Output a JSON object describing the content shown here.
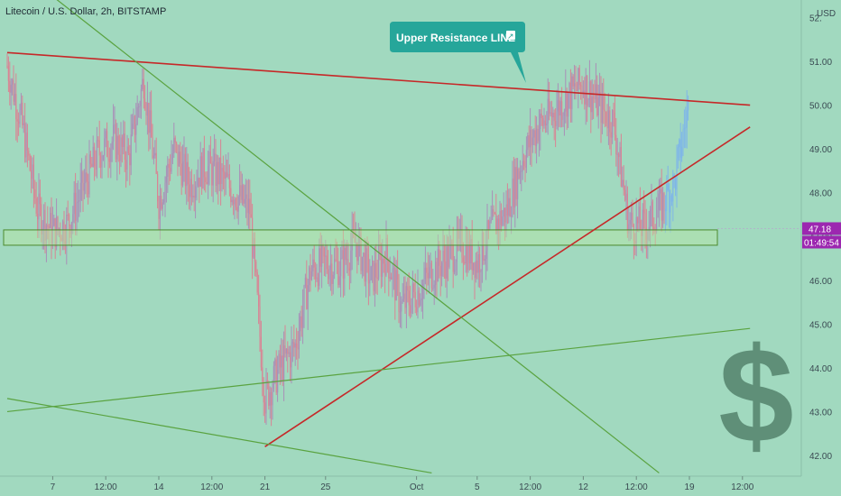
{
  "header": {
    "symbol_title": "Litecoin / U.S. Dollar, 2h, BITSTAMP",
    "currency": "USD"
  },
  "annotation": {
    "callout_text": "Upper Resistance LINE",
    "callout_glyph": "↗",
    "dollar_glyph": "$"
  },
  "price_tag": {
    "value": "47.18",
    "color": "#9c27b0"
  },
  "time_tag": {
    "value": "01:49:54",
    "color": "#9c27b0"
  },
  "colors": {
    "background": "#a1d9bf",
    "red_line": "#c62828",
    "green_line": "#5aa340",
    "candle_up": "#7fb6e8",
    "candle_down": "#d98494",
    "callout": "#26a69a",
    "zone_fill": "#b9e6a5",
    "dollar": "#5f8f78"
  },
  "chart_data": {
    "type": "candlestick",
    "title": "Litecoin / U.S. Dollar, 2h, BITSTAMP",
    "ylabel": "USD",
    "ylim": [
      41.6,
      52.5
    ],
    "y_ticks": [
      "52.",
      "51.00",
      "50.00",
      "49.00",
      "48.00",
      "47.00",
      "46.00",
      "45.00",
      "44.00",
      "43.00",
      "42.00"
    ],
    "x_ticks": [
      "7",
      "12:00",
      "14",
      "12:00",
      "21",
      "25",
      "Oct",
      "5",
      "12:00",
      "12",
      "12:00",
      "19",
      "12:00"
    ],
    "price_path": [
      {
        "t": "Sep 4",
        "price": 50.9
      },
      {
        "t": "Sep 5",
        "price": 49.5
      },
      {
        "t": "Sep 6",
        "price": 47.6
      },
      {
        "t": "Sep 7",
        "price": 47.1
      },
      {
        "t": "Sep 8",
        "price": 47.3
      },
      {
        "t": "Sep 9",
        "price": 48.1
      },
      {
        "t": "Sep 10",
        "price": 48.9
      },
      {
        "t": "Sep 11",
        "price": 49.2
      },
      {
        "t": "Sep 12",
        "price": 48.8
      },
      {
        "t": "Sep 13",
        "price": 50.6
      },
      {
        "t": "Sep 14",
        "price": 47.8
      },
      {
        "t": "Sep 15",
        "price": 49.0
      },
      {
        "t": "Sep 16",
        "price": 48.2
      },
      {
        "t": "Sep 17",
        "price": 48.6
      },
      {
        "t": "Sep 18",
        "price": 48.4
      },
      {
        "t": "Sep 19",
        "price": 48.0
      },
      {
        "t": "Sep 20",
        "price": 47.6
      },
      {
        "t": "Sep 21",
        "price": 43.3
      },
      {
        "t": "Sep 22",
        "price": 44.0
      },
      {
        "t": "Sep 23",
        "price": 44.5
      },
      {
        "t": "Sep 24",
        "price": 46.2
      },
      {
        "t": "Sep 25",
        "price": 46.4
      },
      {
        "t": "Sep 26",
        "price": 46.3
      },
      {
        "t": "Sep 27",
        "price": 46.9
      },
      {
        "t": "Sep 28",
        "price": 46.0
      },
      {
        "t": "Sep 29",
        "price": 46.6
      },
      {
        "t": "Sep 30",
        "price": 45.4
      },
      {
        "t": "Oct 1",
        "price": 45.7
      },
      {
        "t": "Oct 2",
        "price": 46.2
      },
      {
        "t": "Oct 3",
        "price": 46.5
      },
      {
        "t": "Oct 4",
        "price": 46.8
      },
      {
        "t": "Oct 5",
        "price": 46.4
      },
      {
        "t": "Oct 6",
        "price": 47.2
      },
      {
        "t": "Oct 7",
        "price": 47.6
      },
      {
        "t": "Oct 8",
        "price": 48.8
      },
      {
        "t": "Oct 9",
        "price": 49.5
      },
      {
        "t": "Oct 10",
        "price": 49.8
      },
      {
        "t": "Oct 11",
        "price": 50.2
      },
      {
        "t": "Oct 12",
        "price": 50.5
      },
      {
        "t": "Oct 13",
        "price": 50.0
      },
      {
        "t": "Oct 14",
        "price": 49.6
      },
      {
        "t": "Oct 15",
        "price": 47.3
      },
      {
        "t": "Oct 16",
        "price": 47.2
      },
      {
        "t": "Oct 17",
        "price": 47.6
      },
      {
        "t": "Oct 18",
        "price": 48.2
      },
      {
        "t": "Oct 19",
        "price": 50.1
      }
    ],
    "lines": [
      {
        "name": "Upper Resistance LINE",
        "color": "#c62828",
        "from": {
          "t": "Sep 4",
          "price": 51.2
        },
        "to": {
          "t": "Oct 23",
          "price": 50.0
        }
      },
      {
        "name": "Rising support",
        "color": "#c62828",
        "from": {
          "t": "Sep 21",
          "price": 42.2
        },
        "to": {
          "t": "Oct 23",
          "price": 49.5
        }
      },
      {
        "name": "Falling trendline",
        "color": "#5aa340",
        "from": {
          "t": "Sep 4",
          "price": 53.3
        },
        "to": {
          "t": "Oct 17",
          "price": 41.6
        }
      },
      {
        "name": "Rising trendline",
        "color": "#5aa340",
        "from": {
          "t": "Sep 4",
          "price": 43.0
        },
        "to": {
          "t": "Oct 23",
          "price": 44.9
        }
      },
      {
        "name": "Lower falling trendline",
        "color": "#5aa340",
        "from": {
          "t": "Sep 4",
          "price": 43.3
        },
        "to": {
          "t": "Oct 2",
          "price": 41.6
        }
      }
    ],
    "zone": {
      "low": 46.8,
      "high": 47.15
    },
    "last_price": 47.18
  }
}
